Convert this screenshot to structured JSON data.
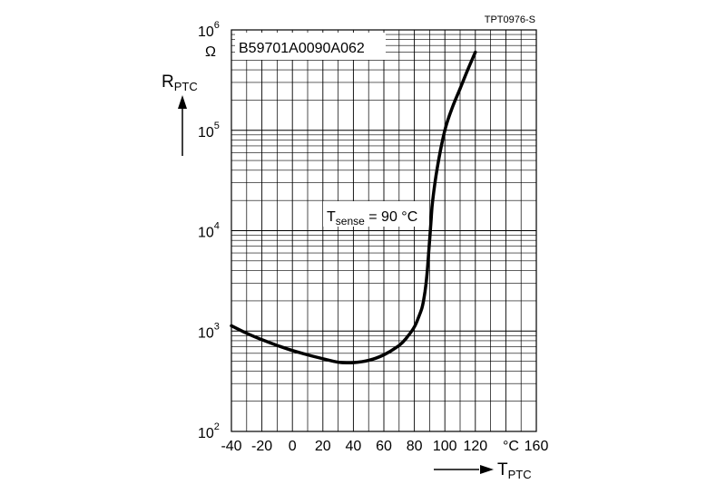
{
  "chart_data": {
    "type": "line",
    "title": "B59701A0090A062",
    "figure_id": "TPT0976-S",
    "annotation": {
      "base": "T",
      "sub": "sense",
      "rest": " = 90 °C"
    },
    "xlabel": {
      "base": "T",
      "sub": "PTC"
    },
    "ylabel": {
      "base": "R",
      "sub": "PTC"
    },
    "x_unit": "°C",
    "y_unit": "Ω",
    "y_scale": "log",
    "xlim": [
      -40,
      160
    ],
    "ylim": [
      100,
      1000000
    ],
    "x_ticks": [
      "-40",
      "-20",
      "0",
      "20",
      "40",
      "60",
      "80",
      "100",
      "120",
      "160"
    ],
    "y_ticks": [
      {
        "base": "10",
        "exp": "2"
      },
      {
        "base": "10",
        "exp": "3"
      },
      {
        "base": "10",
        "exp": "4"
      },
      {
        "base": "10",
        "exp": "5"
      },
      {
        "base": "10",
        "exp": "6"
      }
    ],
    "series": [
      {
        "name": "B59701A0090A062",
        "x": [
          -40,
          -30,
          -20,
          -10,
          0,
          10,
          20,
          30,
          40,
          50,
          60,
          70,
          75,
          80,
          83,
          85,
          86,
          87,
          88,
          89,
          90,
          91,
          92,
          95,
          100,
          105,
          110,
          115,
          120
        ],
        "y": [
          1130,
          950,
          820,
          720,
          640,
          580,
          530,
          490,
          485,
          510,
          580,
          720,
          860,
          1100,
          1400,
          1700,
          2000,
          2500,
          3300,
          5000,
          8000,
          13000,
          20000,
          42000,
          100000,
          170000,
          260000,
          400000,
          600000
        ]
      }
    ]
  }
}
